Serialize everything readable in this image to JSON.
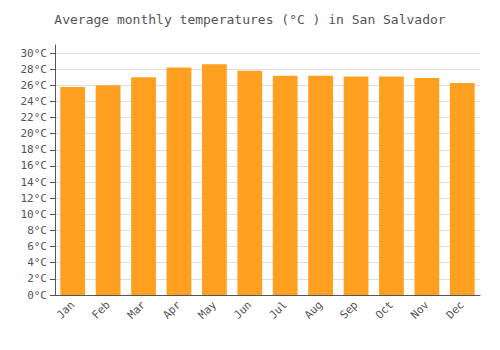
{
  "chart_data": {
    "type": "bar",
    "title": "Average monthly temperatures (°C ) in San Salvador",
    "categories": [
      "Jan",
      "Feb",
      "Mar",
      "Apr",
      "May",
      "Jun",
      "Jul",
      "Aug",
      "Sep",
      "Oct",
      "Nov",
      "Dec"
    ],
    "values": [
      25.8,
      26.0,
      27.0,
      28.2,
      28.6,
      27.8,
      27.2,
      27.2,
      27.1,
      27.1,
      26.9,
      26.3
    ],
    "color": "#FFA020",
    "ylim": [
      0,
      31
    ],
    "yticks": [
      {
        "value": 0,
        "label": "0°C"
      },
      {
        "value": 2,
        "label": "2°C"
      },
      {
        "value": 4,
        "label": "4°C"
      },
      {
        "value": 6,
        "label": "6°C"
      },
      {
        "value": 8,
        "label": "8°C"
      },
      {
        "value": 10,
        "label": "10°C"
      },
      {
        "value": 12,
        "label": "12°C"
      },
      {
        "value": 14,
        "label": "14°C"
      },
      {
        "value": 16,
        "label": "16°C"
      },
      {
        "value": 18,
        "label": "18°C"
      },
      {
        "value": 20,
        "label": "20°C"
      },
      {
        "value": 22,
        "label": "22°C"
      },
      {
        "value": 24,
        "label": "24°C"
      },
      {
        "value": 26,
        "label": "26°C"
      },
      {
        "value": 28,
        "label": "28°C"
      },
      {
        "value": 30,
        "label": "30°C"
      }
    ],
    "grid": true
  }
}
